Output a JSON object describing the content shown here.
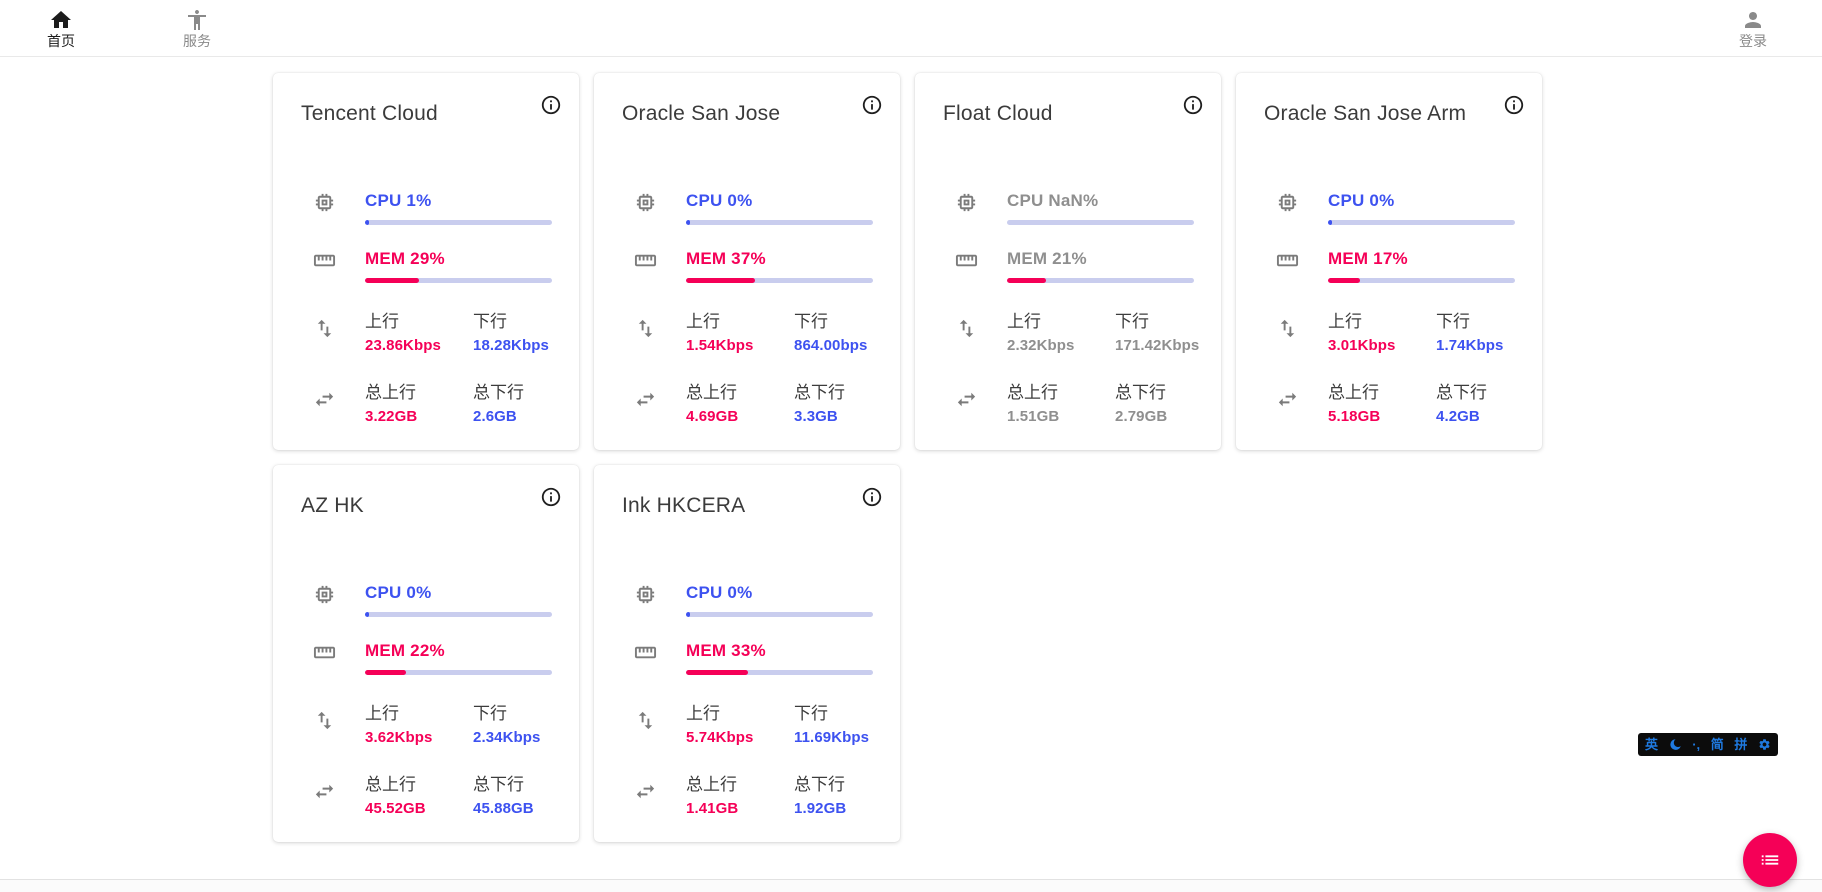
{
  "nav": {
    "items": [
      {
        "label": "首页",
        "icon": "home-icon",
        "active": true
      },
      {
        "label": "服务",
        "icon": "accessibility-icon",
        "active": false
      }
    ],
    "login": {
      "label": "登录",
      "icon": "person-icon"
    }
  },
  "labels": {
    "up": "上行",
    "down": "下行",
    "total_up": "总上行",
    "total_down": "总下行"
  },
  "cards": [
    {
      "title": "Tencent Cloud",
      "cpu_text": "CPU 1%",
      "cpu_pct": 1,
      "mem_text": "MEM 29%",
      "mem_pct": 29,
      "up_value": "23.86Kbps",
      "down_value": "18.28Kbps",
      "total_up_value": "3.22GB",
      "total_down_value": "2.6GB",
      "offline": false
    },
    {
      "title": "Oracle San Jose",
      "cpu_text": "CPU 0%",
      "cpu_pct": 0,
      "mem_text": "MEM 37%",
      "mem_pct": 37,
      "up_value": "1.54Kbps",
      "down_value": "864.00bps",
      "total_up_value": "4.69GB",
      "total_down_value": "3.3GB",
      "offline": false
    },
    {
      "title": "Float Cloud",
      "cpu_text": "CPU NaN%",
      "cpu_pct": null,
      "mem_text": "MEM 21%",
      "mem_pct": 21,
      "up_value": "2.32Kbps",
      "down_value": "171.42Kbps",
      "total_up_value": "1.51GB",
      "total_down_value": "2.79GB",
      "offline": true
    },
    {
      "title": "Oracle San Jose Arm",
      "cpu_text": "CPU 0%",
      "cpu_pct": 0,
      "mem_text": "MEM 17%",
      "mem_pct": 17,
      "up_value": "3.01Kbps",
      "down_value": "1.74Kbps",
      "total_up_value": "5.18GB",
      "total_down_value": "4.2GB",
      "offline": false
    },
    {
      "title": "AZ HK",
      "cpu_text": "CPU 0%",
      "cpu_pct": 0,
      "mem_text": "MEM 22%",
      "mem_pct": 22,
      "up_value": "3.62Kbps",
      "down_value": "2.34Kbps",
      "total_up_value": "45.52GB",
      "total_down_value": "45.88GB",
      "offline": false
    },
    {
      "title": "Ink HKCERA",
      "cpu_text": "CPU 0%",
      "cpu_pct": 0,
      "mem_text": "MEM 33%",
      "mem_pct": 33,
      "up_value": "5.74Kbps",
      "down_value": "11.69Kbps",
      "total_up_value": "1.41GB",
      "total_down_value": "1.92GB",
      "offline": false
    }
  ],
  "card_icons": [
    "cpu-chip-icon",
    "memory-ruler-icon",
    "swap-vertical-icon",
    "swap-horizontal-icon",
    "info-icon"
  ],
  "ime_bar": {
    "lang": "英",
    "simplified": "简",
    "pinyin": "拼",
    "punct": "·,",
    "icons": [
      "moon-icon",
      "gear-icon"
    ]
  },
  "fab": {
    "icon": "list-icon"
  },
  "colors": {
    "accent_pink": "#f50057",
    "accent_blue": "#3d52f0",
    "bar_track": "#c9cdee",
    "muted_offline": "#8f8f8f",
    "fab_pink": "#f50057",
    "ime_blue": "#1f7ae0"
  }
}
